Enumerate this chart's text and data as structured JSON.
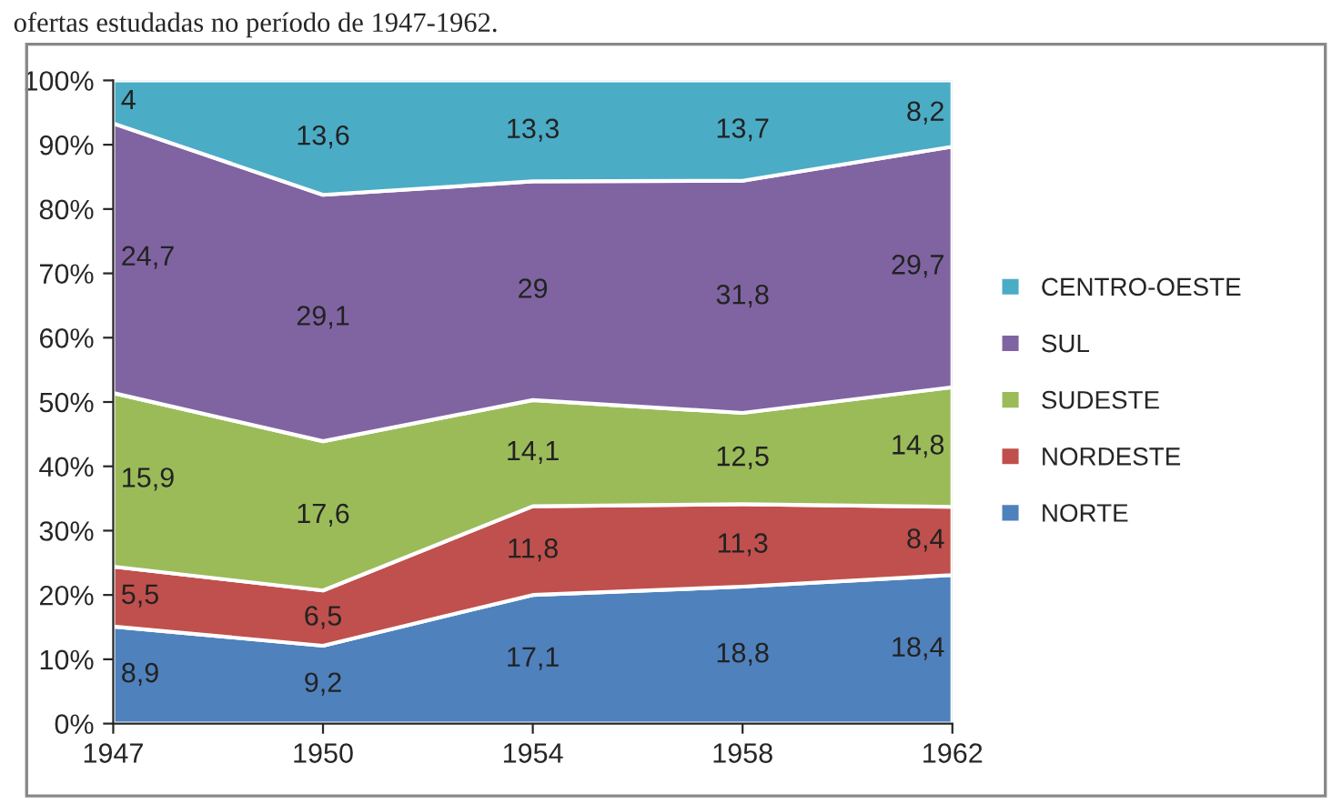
{
  "chart_data": {
    "type": "area",
    "stacked": true,
    "title": "ofertas estudadas no período de 1947-1962.",
    "categories": [
      "1947",
      "1950",
      "1954",
      "1958",
      "1962"
    ],
    "series": [
      {
        "name": "NORTE",
        "color": "#4f81bd",
        "values": [
          15.1,
          12.1,
          20.0,
          21.3,
          23.1
        ]
      },
      {
        "name": "NORDESTE",
        "color": "#c0504d",
        "values": [
          9.3,
          8.6,
          13.8,
          12.8,
          10.6
        ]
      },
      {
        "name": "SUDESTE",
        "color": "#9bbb59",
        "values": [
          27.0,
          23.2,
          16.5,
          14.2,
          18.6
        ]
      },
      {
        "name": "SUL",
        "color": "#8064a2",
        "values": [
          41.9,
          38.3,
          34.0,
          36.1,
          37.4
        ]
      },
      {
        "name": "CENTRO-OESTE",
        "color": "#4bacc6",
        "values": [
          6.7,
          17.8,
          15.7,
          15.6,
          10.3
        ]
      }
    ],
    "annotations": [
      "8,9",
      "5,5",
      "15,9",
      "24,7",
      "4",
      "9,2",
      "6,5",
      "17,6",
      "29,1",
      "13,6",
      "17,1",
      "11,8",
      "14,1",
      "29",
      "13,3",
      "18,8",
      "11,3",
      "12,5",
      "31,8",
      "13,7",
      "18,4",
      "8,4",
      "14,8",
      "29,7",
      "8,2"
    ],
    "ylim": [
      0,
      100
    ],
    "yticks": [
      {
        "value": 0,
        "label": "0%"
      },
      {
        "value": 10,
        "label": "10%"
      },
      {
        "value": 20,
        "label": "20%"
      },
      {
        "value": 30,
        "label": "30%"
      },
      {
        "value": 40,
        "label": "40%"
      },
      {
        "value": 50,
        "label": "50%"
      },
      {
        "value": 60,
        "label": "60%"
      },
      {
        "value": 70,
        "label": "70%"
      },
      {
        "value": 80,
        "label": "80%"
      },
      {
        "value": 90,
        "label": "90%"
      },
      {
        "value": 100,
        "label": "100%"
      }
    ],
    "grid": false,
    "legend": "right"
  }
}
